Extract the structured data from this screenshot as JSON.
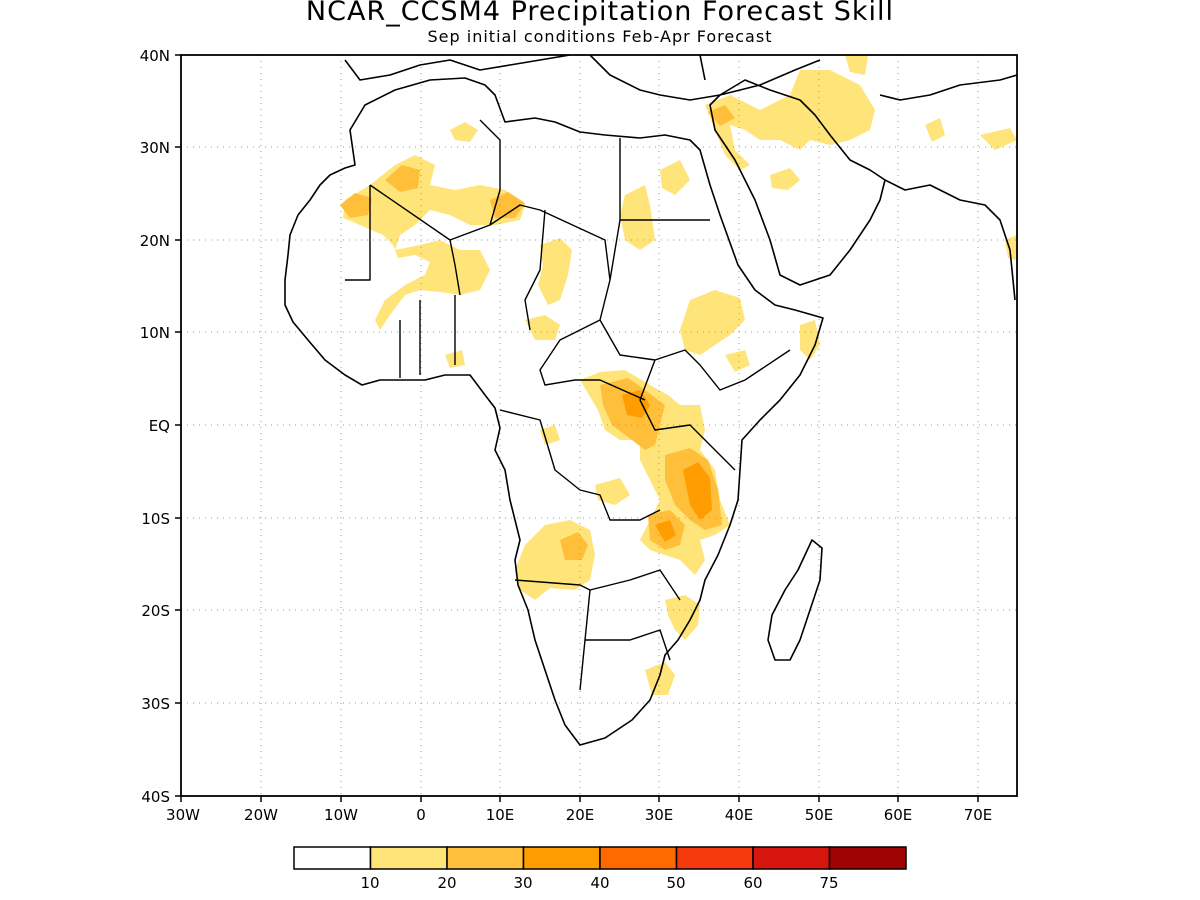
{
  "title": "NCAR_CCSM4 Precipitation Forecast Skill",
  "subtitle": "Sep initial conditions  Feb-Apr Forecast",
  "map": {
    "region": "Africa",
    "lon_range": [
      -30,
      75
    ],
    "lat_range": [
      -40,
      40
    ],
    "lat_ticks": [
      "40N",
      "30N",
      "20N",
      "10N",
      "EQ",
      "10S",
      "20S",
      "30S",
      "40S"
    ],
    "lon_ticks": [
      "30W",
      "20W",
      "10W",
      "0",
      "10E",
      "20E",
      "30E",
      "40E",
      "50E",
      "60E",
      "70E"
    ],
    "grid": "dotted"
  },
  "legend": {
    "ticks": [
      "10",
      "20",
      "30",
      "40",
      "50",
      "60",
      "75"
    ],
    "colors": [
      "#ffffff",
      "#ffe47a",
      "#ffbf3b",
      "#ff9c00",
      "#ff6a00",
      "#f53a0e",
      "#d81610",
      "#a00303"
    ]
  }
}
